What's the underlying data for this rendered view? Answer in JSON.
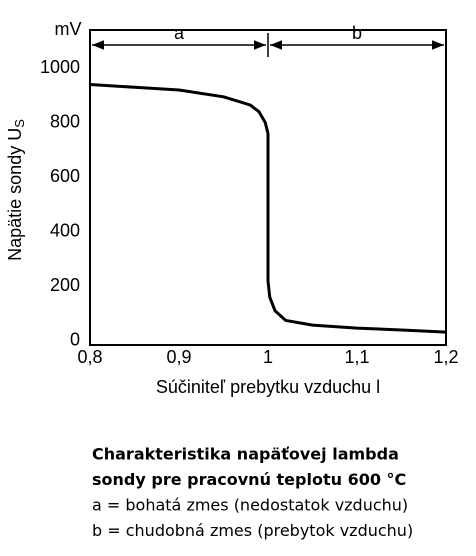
{
  "chart_data": {
    "type": "line",
    "y_unit": "mV",
    "y_label": "Napätie sondy U",
    "y_label_subscript": "S",
    "x_label": "Súčiniteľ prebytku vzduchu  l",
    "x": [
      0.8,
      0.85,
      0.9,
      0.95,
      0.98,
      0.99,
      0.997,
      1.0,
      1.0,
      1.002,
      1.008,
      1.02,
      1.05,
      1.1,
      1.15,
      1.2
    ],
    "values": [
      940,
      930,
      920,
      895,
      865,
      840,
      800,
      760,
      220,
      160,
      110,
      75,
      58,
      47,
      40,
      32
    ],
    "color": "#000000",
    "xlim": [
      0.8,
      1.2
    ],
    "xticks": [
      {
        "value": 0.8,
        "label": "0,8"
      },
      {
        "value": 0.9,
        "label": "0,9"
      },
      1,
      {
        "value": 1.1,
        "label": "1,1"
      },
      {
        "value": 1.2,
        "label": "1,2"
      }
    ],
    "ylim": [
      -15,
      1140
    ],
    "yticks": [
      0,
      200,
      400,
      600,
      800,
      1000
    ],
    "grid": false,
    "regions": [
      {
        "label": "a",
        "from": 0.8,
        "to": 1
      },
      {
        "label": "b",
        "from": 1,
        "to": 1.2
      }
    ],
    "caption": [
      "Charakteristika napäťovej lambda",
      "sondy pre pracovnú teplotu 600 °C",
      "a = bohatá zmes (nedostatok vzduchu)",
      "b = chudobná zmes (prebytok vzduchu)"
    ]
  }
}
